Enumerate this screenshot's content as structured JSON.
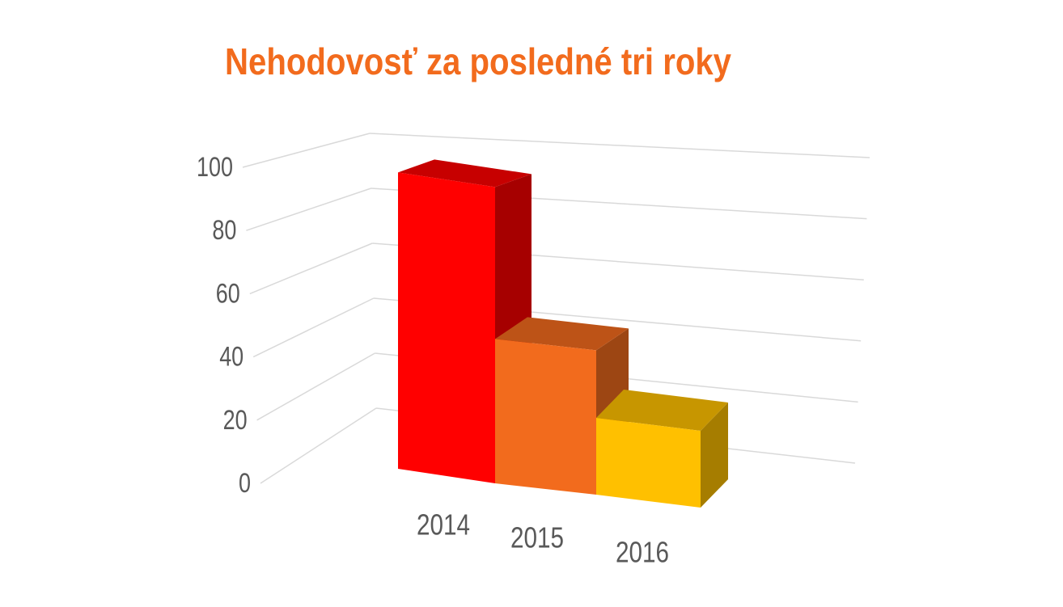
{
  "chart_data": {
    "type": "bar3d",
    "title": "Nehodovosť za posledné tri roky",
    "categories": [
      "2014",
      "2015",
      "2016"
    ],
    "values": [
      97,
      47,
      25
    ],
    "colors": [
      "#ff0000",
      "#f26b1d",
      "#ffc000"
    ],
    "ylim": [
      0,
      100
    ],
    "yticks": [
      0,
      20,
      40,
      60,
      80,
      100
    ],
    "grid": true
  }
}
